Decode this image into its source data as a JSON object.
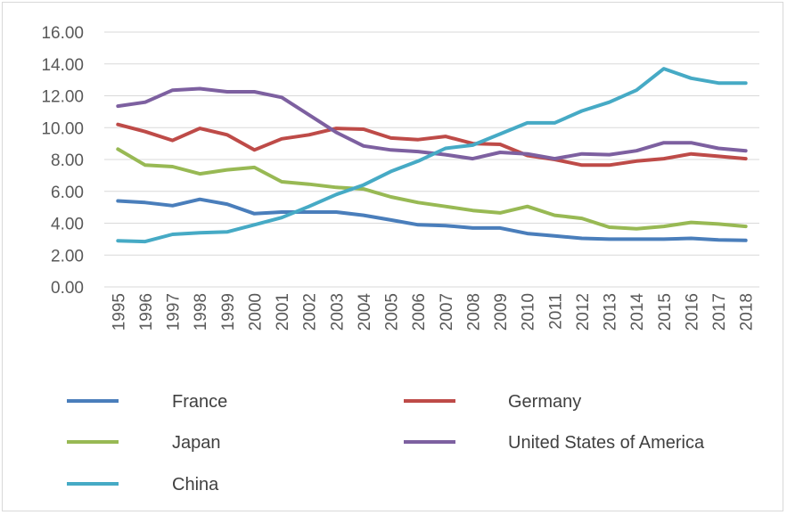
{
  "chart_data": {
    "type": "line",
    "title": "",
    "xlabel": "",
    "ylabel": "",
    "ylim": [
      0,
      16
    ],
    "y_ticks": [
      "0.00",
      "2.00",
      "4.00",
      "6.00",
      "8.00",
      "10.00",
      "12.00",
      "14.00",
      "16.00"
    ],
    "grid": true,
    "legend_position": "bottom",
    "categories": [
      "1995",
      "1996",
      "1997",
      "1998",
      "1999",
      "2000",
      "2001",
      "2002",
      "2003",
      "2004",
      "2005",
      "2006",
      "2007",
      "2008",
      "2009",
      "2010",
      "2011",
      "2012",
      "2013",
      "2014",
      "2015",
      "2016",
      "2017",
      "2018"
    ],
    "series": [
      {
        "name": "France",
        "color": "#4a7ebb",
        "values": [
          5.4,
          5.3,
          5.1,
          5.5,
          5.2,
          4.6,
          4.7,
          4.7,
          4.7,
          4.5,
          4.2,
          3.9,
          3.85,
          3.7,
          3.7,
          3.35,
          3.2,
          3.05,
          3.0,
          3.0,
          3.0,
          3.05,
          2.95,
          2.92
        ]
      },
      {
        "name": "Germany",
        "color": "#be4b48",
        "values": [
          10.2,
          9.75,
          9.2,
          9.95,
          9.55,
          8.6,
          9.3,
          9.55,
          9.95,
          9.9,
          9.35,
          9.25,
          9.45,
          9.0,
          8.95,
          8.25,
          8.0,
          7.65,
          7.65,
          7.9,
          8.05,
          8.35,
          8.2,
          8.05
        ]
      },
      {
        "name": "Japan",
        "color": "#98b954",
        "values": [
          8.65,
          7.65,
          7.55,
          7.1,
          7.35,
          7.5,
          6.6,
          6.45,
          6.25,
          6.15,
          5.65,
          5.3,
          5.05,
          4.8,
          4.65,
          5.05,
          4.5,
          4.3,
          3.75,
          3.65,
          3.8,
          4.05,
          3.95,
          3.8
        ]
      },
      {
        "name": "United States of America",
        "color": "#7d60a0",
        "values": [
          11.35,
          11.6,
          12.35,
          12.45,
          12.25,
          12.25,
          11.9,
          10.8,
          9.7,
          8.85,
          8.6,
          8.5,
          8.3,
          8.05,
          8.45,
          8.35,
          8.05,
          8.35,
          8.3,
          8.55,
          9.05,
          9.05,
          8.7,
          8.55
        ]
      },
      {
        "name": "China",
        "color": "#46aac5",
        "values": [
          2.9,
          2.85,
          3.3,
          3.4,
          3.45,
          3.9,
          4.35,
          5.05,
          5.8,
          6.4,
          7.25,
          7.9,
          8.7,
          8.9,
          9.6,
          10.3,
          10.3,
          11.05,
          11.6,
          12.35,
          13.7,
          13.1,
          12.8,
          12.8
        ]
      }
    ]
  }
}
